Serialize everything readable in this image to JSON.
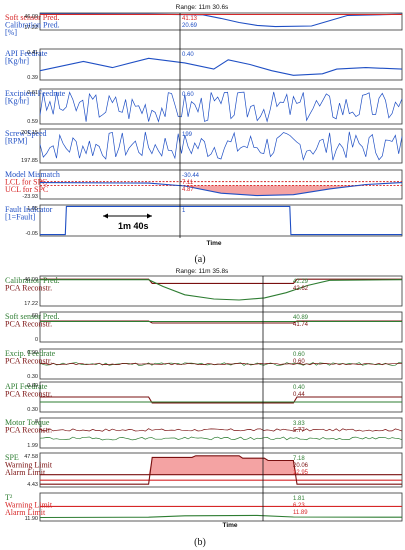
{
  "colors": {
    "blue": "#1f4fc4",
    "red": "#d62728",
    "green": "#2e7d32",
    "darkred": "#7a1010",
    "fill": "#f4a3a3",
    "axis": "#222"
  },
  "figure_a": {
    "range_label": "Range: 11m 30.6s",
    "time_label": "Time",
    "caption": "(a)",
    "duration_label": "1m 40s"
  },
  "figure_b": {
    "range_label": "Range: 11m 35.8s",
    "time_label": "Time",
    "caption": "(b)"
  },
  "chart_data": [
    {
      "type": "line",
      "panel": "a1",
      "labels": [
        "Soft sensor Pred.",
        "Calibration Pred.",
        "[%]"
      ],
      "label_colors": [
        "red",
        "blue",
        "blue"
      ],
      "ylim": [
        17.22,
        46.09
      ],
      "yticks": [
        "46.09",
        "17.22"
      ],
      "readouts": [
        {
          "text": "41.13",
          "color": "red"
        },
        {
          "text": "20.69",
          "color": "blue"
        }
      ],
      "series": [
        {
          "color": "blue",
          "x": [
            0,
            30,
            45,
            50,
            55,
            60,
            65,
            75,
            85,
            100
          ],
          "y": [
            44.5,
            44,
            43,
            37,
            30,
            25,
            23,
            24,
            42,
            44
          ]
        },
        {
          "color": "red",
          "x": [
            0,
            100
          ],
          "y": [
            43.5,
            43.5
          ]
        }
      ]
    },
    {
      "type": "line",
      "panel": "a2",
      "labels": [
        "API Feedrate",
        "[Kg/hr]"
      ],
      "label_colors": [
        "blue",
        "blue"
      ],
      "ylim": [
        0.39,
        0.41
      ],
      "yticks": [
        "0.41",
        "0.39"
      ],
      "readouts": [
        {
          "text": "0.40",
          "color": "blue"
        }
      ],
      "series": [
        {
          "color": "blue",
          "x": [
            0,
            12,
            20,
            30,
            40,
            48,
            52,
            58,
            64,
            70,
            78,
            82,
            90,
            100
          ],
          "y": [
            0.396,
            0.402,
            0.398,
            0.404,
            0.401,
            0.397,
            0.403,
            0.4,
            0.396,
            0.393,
            0.394,
            0.397,
            0.398,
            0.397
          ]
        }
      ]
    },
    {
      "type": "line",
      "panel": "a3",
      "labels": [
        "Excipient Feedrate",
        "[Kg/hr]"
      ],
      "label_colors": [
        "blue",
        "blue"
      ],
      "ylim": [
        0.59,
        0.61
      ],
      "yticks": [
        "0.61",
        "0.59"
      ],
      "readouts": [
        {
          "text": "0.60",
          "color": "blue"
        }
      ],
      "series": [
        {
          "color": "blue",
          "noisy": true,
          "seed": 3,
          "center": 0.6,
          "amp": 0.009
        }
      ]
    },
    {
      "type": "line",
      "panel": "a4",
      "labels": [
        "Screw Speed",
        "[RPM]"
      ],
      "label_colors": [
        "blue",
        "blue"
      ],
      "ylim": [
        197.85,
        201.15
      ],
      "yticks": [
        "201.15",
        "197.85"
      ],
      "readouts": [
        {
          "text": "199",
          "color": "blue"
        }
      ],
      "series": [
        {
          "color": "blue",
          "noisy": true,
          "seed": 7,
          "center": 199.5,
          "amp": 1.4
        }
      ]
    },
    {
      "type": "line",
      "panel": "a5",
      "labels": [
        "Model Mismatch",
        "LCL for SPC",
        "UCL for SPC"
      ],
      "label_colors": [
        "blue",
        "red",
        "red"
      ],
      "ylim": [
        -23.93,
        36
      ],
      "yticks": [
        "-23.93"
      ],
      "readouts": [
        {
          "text": "-30.44",
          "color": "blue"
        },
        {
          "text": "7.11",
          "color": "red"
        },
        {
          "text": "4.87",
          "color": "red"
        }
      ],
      "fill_between": true,
      "upper_limit": 12,
      "lower_limit": 4,
      "series": [
        {
          "color": "blue",
          "x": [
            0,
            30,
            40,
            50,
            60,
            70,
            80,
            90,
            100
          ],
          "y": [
            10,
            9,
            3,
            -12,
            -17,
            -15,
            -3,
            6,
            10
          ]
        }
      ]
    },
    {
      "type": "line",
      "panel": "a6",
      "labels": [
        "Fault Indicator",
        "[1=Fault]"
      ],
      "label_colors": [
        "blue",
        "blue"
      ],
      "ylim": [
        -0.05,
        1.05
      ],
      "yticks": [
        "1.05",
        "-0.05"
      ],
      "readouts": [
        {
          "text": "1",
          "color": "blue"
        }
      ],
      "series": [
        {
          "color": "blue",
          "x": [
            0,
            7,
            7.3,
            69,
            69.3,
            100
          ],
          "y": [
            0,
            0,
            1,
            1,
            0,
            0
          ]
        }
      ]
    },
    {
      "type": "line",
      "panel": "b1",
      "labels": [
        "Calibration Pred.",
        "PCA Reconstr."
      ],
      "label_colors": [
        "green",
        "darkred"
      ],
      "ylim": [
        17.22,
        46.09
      ],
      "yticks": [
        "46.09",
        "17.22"
      ],
      "readouts": [
        {
          "text": "42.29",
          "color": "green"
        },
        {
          "text": "42.62",
          "color": "darkred"
        }
      ],
      "series": [
        {
          "color": "darkred",
          "x": [
            0,
            30,
            31,
            70,
            71,
            100
          ],
          "y": [
            43,
            43,
            39,
            39,
            43,
            43
          ]
        },
        {
          "color": "green",
          "x": [
            0,
            30,
            34,
            40,
            48,
            55,
            62,
            68,
            74,
            80,
            100
          ],
          "y": [
            42.5,
            42.5,
            36,
            28,
            24,
            23,
            25,
            30,
            37,
            42,
            42.5
          ]
        }
      ]
    },
    {
      "type": "line",
      "panel": "b2",
      "labels": [
        "Soft sensor Pred.",
        "PCA Reconstr."
      ],
      "label_colors": [
        "green",
        "darkred"
      ],
      "ylim": [
        0,
        60
      ],
      "yticks": [
        "60",
        "0"
      ],
      "readouts": [
        {
          "text": "40.89",
          "color": "green"
        },
        {
          "text": "41.74",
          "color": "darkred"
        }
      ],
      "series": [
        {
          "color": "darkred",
          "x": [
            0,
            30,
            31,
            70,
            71,
            100
          ],
          "y": [
            42,
            42,
            38,
            38,
            42,
            42
          ]
        },
        {
          "color": "green",
          "x": [
            0,
            100
          ],
          "y": [
            41,
            41
          ]
        }
      ]
    },
    {
      "type": "line",
      "panel": "b3",
      "labels": [
        "Excip. Feedrate",
        "PCA Reconstr."
      ],
      "label_colors": [
        "green",
        "darkred"
      ],
      "ylim": [
        0.3,
        0.9
      ],
      "yticks": [
        "0.90",
        "0.30"
      ],
      "readouts": [
        {
          "text": "0.60",
          "color": "green"
        },
        {
          "text": "0.60",
          "color": "darkred"
        }
      ],
      "series": [
        {
          "color": "green",
          "noisy": true,
          "seed": 11,
          "center": 0.6,
          "amp": 0.03
        },
        {
          "color": "darkred",
          "noisy": true,
          "seed": 13,
          "center": 0.6,
          "amp": 0.015
        }
      ]
    },
    {
      "type": "line",
      "panel": "b4",
      "labels": [
        "API Feedrate",
        "PCA Reconstr."
      ],
      "label_colors": [
        "green",
        "darkred"
      ],
      "ylim": [
        0.3,
        0.6
      ],
      "yticks": [
        "0.60",
        "0.30"
      ],
      "readouts": [
        {
          "text": "0.40",
          "color": "green"
        },
        {
          "text": "0.44",
          "color": "darkred"
        }
      ],
      "series": [
        {
          "color": "darkred",
          "x": [
            0,
            30,
            31,
            70,
            71,
            100
          ],
          "y": [
            0.45,
            0.45,
            0.39,
            0.39,
            0.45,
            0.45
          ]
        },
        {
          "color": "green",
          "x": [
            0,
            100
          ],
          "y": [
            0.4,
            0.4
          ]
        }
      ]
    },
    {
      "type": "line",
      "panel": "b5",
      "labels": [
        "Motor Torque",
        "PCA Reconstr."
      ],
      "label_colors": [
        "green",
        "darkred"
      ],
      "ylim": [
        1.99,
        8
      ],
      "yticks": [
        "8",
        "1.99"
      ],
      "readouts": [
        {
          "text": "3.83",
          "color": "green"
        },
        {
          "text": "5.77",
          "color": "darkred"
        }
      ],
      "series": [
        {
          "color": "darkred",
          "noisy": true,
          "seed": 17,
          "center": 5.6,
          "amp": 0.25
        },
        {
          "color": "green",
          "noisy": true,
          "seed": 19,
          "center": 3.9,
          "amp": 0.3
        }
      ]
    },
    {
      "type": "area",
      "panel": "b6",
      "labels": [
        "SPE",
        "Warning Limit",
        "Alarm Limit"
      ],
      "label_colors": [
        "green",
        "darkred",
        "darkred"
      ],
      "ylim": [
        4.43,
        47.58
      ],
      "yticks": [
        "47.58",
        "4.43"
      ],
      "readouts": [
        {
          "text": "7.18",
          "color": "green"
        },
        {
          "text": "20.06",
          "color": "darkred"
        },
        {
          "text": "12.95",
          "color": "red"
        }
      ],
      "fill_between": true,
      "upper_limit": 20,
      "lower_limit": 13,
      "series": [
        {
          "color": "darkred",
          "x": [
            0,
            100
          ],
          "y": [
            20,
            20
          ]
        },
        {
          "color": "red",
          "x": [
            0,
            100
          ],
          "y": [
            13,
            13
          ]
        },
        {
          "color": "darkred",
          "x": [
            0,
            30,
            31,
            42,
            43,
            55,
            56,
            62,
            63,
            70,
            71,
            100
          ],
          "y": [
            8,
            8,
            42,
            42,
            44,
            44,
            41,
            41,
            38,
            38,
            8,
            8
          ]
        }
      ]
    },
    {
      "type": "line",
      "panel": "b7",
      "labels": [
        "T²",
        "Warning Limit",
        "Alarm Limit"
      ],
      "label_colors": [
        "green",
        "red",
        "red"
      ],
      "ylim": [
        0,
        11.9
      ],
      "yticks": [
        "11.90"
      ],
      "readouts": [
        {
          "text": "1.81",
          "color": "green"
        },
        {
          "text": "6.23",
          "color": "red"
        },
        {
          "text": "11.89",
          "color": "red"
        }
      ],
      "series": [
        {
          "color": "red",
          "x": [
            0,
            100
          ],
          "y": [
            6.2,
            6.2
          ]
        },
        {
          "color": "green",
          "x": [
            0,
            30,
            40,
            60,
            70,
            100
          ],
          "y": [
            1.5,
            1.6,
            2.2,
            2.4,
            1.7,
            1.6
          ]
        }
      ]
    }
  ]
}
